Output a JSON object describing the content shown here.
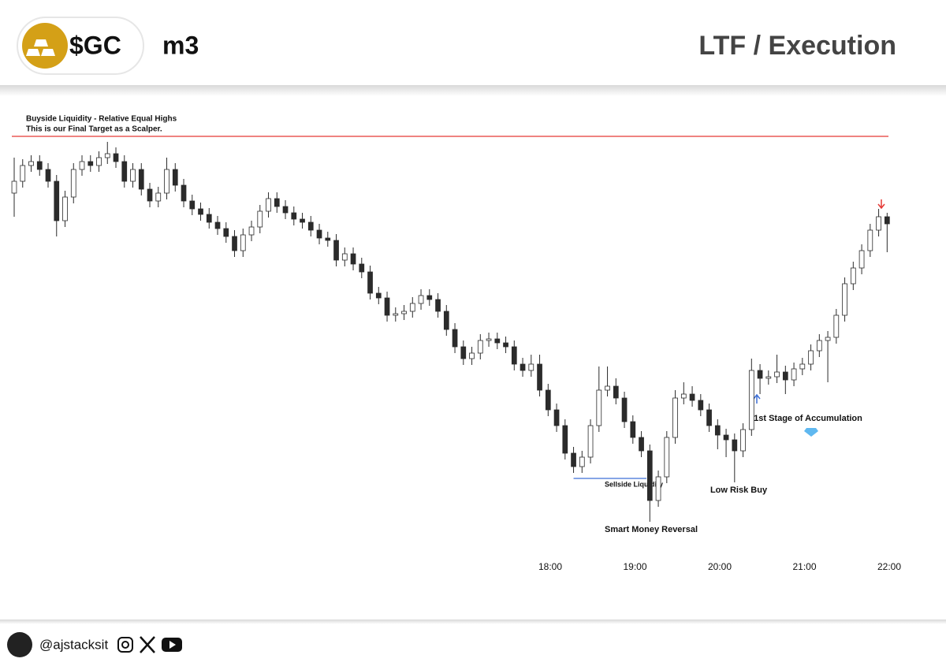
{
  "header": {
    "symbol": "$GC",
    "timeframe": "m3",
    "title": "LTF / Execution"
  },
  "chart_data": {
    "type": "candlestick",
    "up_color": "#ffffff",
    "down_color": "#2b2b2b",
    "open": [
      91,
      94,
      98,
      99,
      97,
      94,
      84,
      90,
      97,
      99,
      98,
      100,
      101,
      99,
      94,
      97,
      92,
      89,
      91,
      97,
      93,
      89,
      87,
      85.6,
      83.6,
      82,
      80,
      76.4,
      80.4,
      82.4,
      86.4,
      89.6,
      87.6,
      86,
      84.4,
      83.6,
      81.6,
      79.6,
      79,
      74,
      75.6,
      73,
      71,
      65.6,
      64.4,
      60,
      60.4,
      61,
      63,
      65,
      64,
      61,
      56.4,
      52,
      49,
      50.4,
      53.6,
      54,
      53,
      52,
      47.6,
      46,
      47.6,
      41,
      36,
      32,
      25,
      21.6,
      24,
      32,
      41,
      42,
      39,
      33,
      29,
      25.6,
      13,
      19,
      29,
      39,
      40,
      38.4,
      36,
      32,
      29.6,
      28.4,
      25.6,
      31,
      46,
      44,
      44.4,
      45.6,
      43.6,
      46.4,
      47.6,
      51,
      53.6,
      54.4,
      60,
      68,
      72,
      76.4,
      81.6,
      85
    ],
    "high": [
      100,
      99.6,
      100.6,
      100.6,
      98.6,
      95.6,
      91.6,
      98.6,
      100.6,
      100.6,
      101.6,
      104,
      102.6,
      100.6,
      98.6,
      98.6,
      93.6,
      92.6,
      100,
      98.6,
      94.6,
      90.6,
      88.6,
      87.2,
      85.2,
      83.6,
      81.6,
      82,
      84,
      88,
      91.2,
      91.2,
      89.2,
      87.6,
      86,
      85.2,
      83.2,
      81.2,
      80.6,
      77.2,
      77.2,
      74.6,
      72.6,
      67.2,
      66,
      62,
      62.6,
      64.6,
      66.6,
      66.6,
      65.6,
      62.6,
      58,
      53.6,
      52,
      55.2,
      55.6,
      55.6,
      54.6,
      53.6,
      49.2,
      50,
      50,
      42.6,
      37.6,
      33.6,
      26.6,
      25.6,
      33.6,
      47,
      47,
      44,
      40.6,
      34.6,
      30.6,
      27.2,
      20.6,
      30.6,
      41,
      43,
      42,
      40,
      37.6,
      33.6,
      31.2,
      30,
      32.6,
      49,
      47.6,
      46,
      50,
      47.2,
      48,
      49.2,
      52.6,
      55.2,
      56,
      61.6,
      69.6,
      73.6,
      78,
      83.2,
      87,
      86
    ],
    "low": [
      85,
      92.4,
      96.4,
      95.4,
      92.4,
      80,
      82.4,
      88.4,
      95.4,
      96.4,
      96.4,
      98.4,
      97.4,
      92.4,
      92.4,
      90.4,
      87.4,
      87.4,
      89.4,
      91.4,
      87.4,
      85.4,
      84,
      82,
      80.4,
      78.4,
      74.8,
      74.8,
      78.8,
      80.8,
      84.8,
      86,
      84.4,
      82.8,
      82,
      80,
      78,
      77.4,
      72.4,
      72.4,
      71.4,
      69.4,
      64,
      62.8,
      58.4,
      58.4,
      58.8,
      59.4,
      61.4,
      62.4,
      59.4,
      54.8,
      50.4,
      47.4,
      47.4,
      48.8,
      52,
      51.4,
      50.4,
      46,
      44.4,
      44.4,
      39.4,
      34.4,
      30.4,
      23.4,
      20,
      20,
      22.4,
      30.4,
      39.4,
      37.4,
      31.4,
      27.4,
      24,
      7.6,
      11.4,
      17.4,
      27.4,
      37.4,
      36.8,
      34.4,
      30.4,
      26,
      24,
      17.6,
      24,
      29.4,
      40,
      42.4,
      42.8,
      40,
      42,
      44.8,
      46,
      49.4,
      43,
      52.8,
      58.4,
      66.4,
      70.4,
      74.8,
      80,
      76
    ],
    "close": [
      94,
      98,
      99,
      97,
      94,
      84,
      90,
      97,
      99,
      98,
      100,
      101,
      99,
      94,
      97,
      92,
      89,
      91,
      97,
      93,
      89,
      87,
      85.6,
      83.6,
      82,
      80,
      76.4,
      80.4,
      82.4,
      86.4,
      89.6,
      87.6,
      86,
      84.4,
      83.6,
      81.6,
      79.6,
      79,
      74,
      75.6,
      73,
      71,
      65.6,
      64.4,
      60,
      60.4,
      61,
      63,
      65,
      64,
      61,
      56.4,
      52,
      49,
      50.4,
      53.6,
      54,
      53,
      52,
      47.6,
      46,
      47.6,
      41,
      36,
      32,
      25,
      21.6,
      24,
      32,
      41,
      42,
      39,
      33,
      29,
      25.6,
      13,
      19,
      29,
      39,
      40,
      38.4,
      36,
      32,
      29.6,
      28.4,
      25.6,
      31,
      46,
      44,
      44.4,
      45.6,
      43.6,
      46.4,
      47.6,
      51,
      53.6,
      54.4,
      60,
      68,
      72,
      76.4,
      81.6,
      85,
      83.2
    ],
    "xlim": [
      -0.28,
      104.83
    ],
    "ylim": [
      0,
      110
    ],
    "xticks": [
      {
        "value": 63.25,
        "label": "18:00"
      },
      {
        "value": 73.25,
        "label": "19:00"
      },
      {
        "value": 83.25,
        "label": "20:00"
      },
      {
        "value": 93.25,
        "label": "21:00"
      },
      {
        "value": 103.25,
        "label": "22:00"
      }
    ],
    "levels": [
      {
        "value": 105.4,
        "color": "#e53935",
        "label": [
          "Buyside Liquidity - Relative Equal Highs",
          "This is our Final Target as a Scalper."
        ]
      },
      {
        "value": 18.6,
        "color": "#3d6fd6",
        "x": [
          66,
          74.6
        ],
        "label": "Sellside Liquidity"
      }
    ],
    "annotations": [
      "Smart Money Reversal",
      "Low Risk Buy",
      "1st Stage of Accumulation"
    ]
  },
  "footer": {
    "handle": "@ajstacksit"
  }
}
